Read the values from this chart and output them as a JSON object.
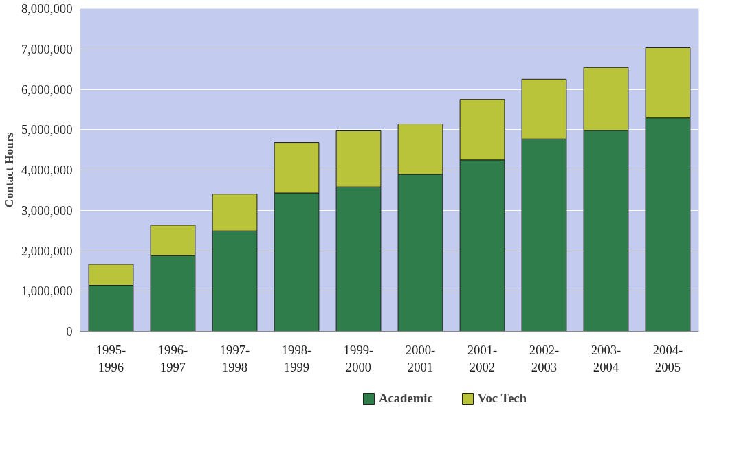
{
  "chart_data": {
    "type": "bar",
    "stacked": true,
    "ylabel": "Contact Hours",
    "categories": [
      "1995-\n1996",
      "1996-\n1997",
      "1997-\n1998",
      "1998-\n1999",
      "1999-\n2000",
      "2000-\n2001",
      "2001-\n2002",
      "2002-\n2003",
      "2003-\n2004",
      "2004-\n2005"
    ],
    "series": [
      {
        "name": "Academic",
        "color": "#2f7d4b",
        "values": [
          1140000,
          1880000,
          2490000,
          3430000,
          3580000,
          3890000,
          4250000,
          4770000,
          4980000,
          5290000
        ]
      },
      {
        "name": "Voc Tech",
        "color": "#b9c43a",
        "values": [
          520000,
          750000,
          910000,
          1250000,
          1390000,
          1250000,
          1500000,
          1480000,
          1560000,
          1740000
        ]
      }
    ],
    "ylim": [
      0,
      8000000
    ],
    "yticks": [
      {
        "value": 0,
        "label": "0"
      },
      {
        "value": 1000000,
        "label": "1,000,000"
      },
      {
        "value": 2000000,
        "label": "2,000,000"
      },
      {
        "value": 3000000,
        "label": "3,000,000"
      },
      {
        "value": 4000000,
        "label": "4,000,000"
      },
      {
        "value": 5000000,
        "label": "5,000,000"
      },
      {
        "value": 6000000,
        "label": "6,000,000"
      },
      {
        "value": 7000000,
        "label": "7,000,000"
      },
      {
        "value": 8000000,
        "label": "8,000,000"
      }
    ],
    "grid": "y",
    "legend": "bottom"
  }
}
